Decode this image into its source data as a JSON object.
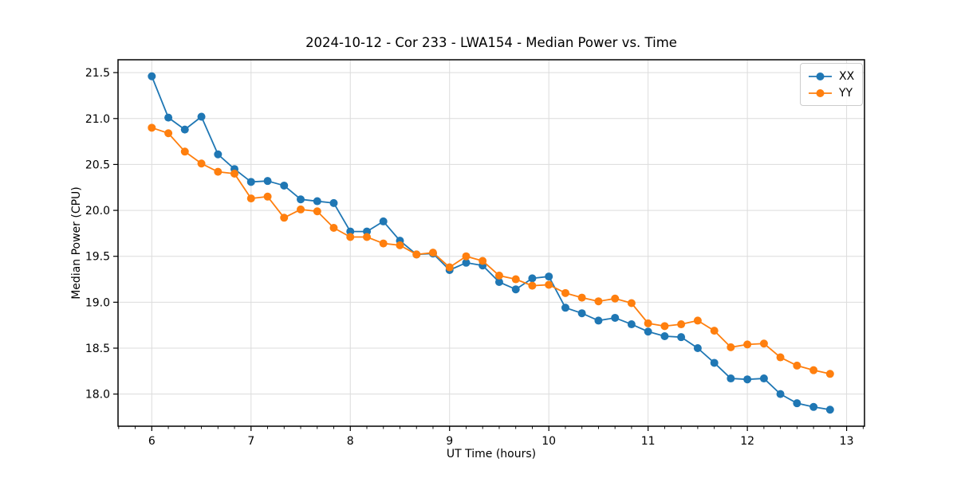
{
  "chart_data": {
    "type": "line",
    "title": "2024-10-12 - Cor 233 - LWA154 - Median Power vs. Time",
    "xlabel": "UT Time (hours)",
    "ylabel": "Median Power (CPU)",
    "xlim": [
      5.66,
      13.18
    ],
    "ylim": [
      17.65,
      21.64
    ],
    "xticks": [
      6,
      7,
      8,
      9,
      10,
      11,
      12,
      13
    ],
    "xtick_labels": [
      "6",
      "7",
      "8",
      "9",
      "10",
      "11",
      "12",
      "13"
    ],
    "yticks": [
      18.0,
      18.5,
      19.0,
      19.5,
      20.0,
      20.5,
      21.0,
      21.5
    ],
    "ytick_labels": [
      "18.0",
      "18.5",
      "19.0",
      "19.5",
      "20.0",
      "20.5",
      "21.0",
      "21.5"
    ],
    "grid": true,
    "grid_color": "#dcdcdc",
    "spine_color": "#000000",
    "background": "#ffffff",
    "minor_tick_step_x": 0.166667,
    "marker": "circle",
    "marker_size": 5,
    "line_width": 1.8,
    "legend_position": "upper right",
    "x": [
      6.0,
      6.167,
      6.333,
      6.5,
      6.667,
      6.833,
      7.0,
      7.167,
      7.333,
      7.5,
      7.667,
      7.833,
      8.0,
      8.167,
      8.333,
      8.5,
      8.667,
      8.833,
      9.0,
      9.167,
      9.333,
      9.5,
      9.667,
      9.833,
      10.0,
      10.167,
      10.333,
      10.5,
      10.667,
      10.833,
      11.0,
      11.167,
      11.333,
      11.5,
      11.667,
      11.833,
      12.0,
      12.167,
      12.333,
      12.5,
      12.667,
      12.833
    ],
    "series": [
      {
        "name": "XX",
        "color": "#1f77b4",
        "values": [
          21.46,
          21.01,
          20.88,
          21.02,
          20.61,
          20.45,
          20.31,
          20.32,
          20.27,
          20.12,
          20.1,
          20.08,
          19.77,
          19.77,
          19.88,
          19.67,
          19.52,
          19.53,
          19.35,
          19.43,
          19.4,
          19.22,
          19.14,
          19.26,
          19.28,
          18.94,
          18.88,
          18.8,
          18.83,
          18.76,
          18.68,
          18.63,
          18.62,
          18.5,
          18.34,
          18.17,
          18.16,
          18.17,
          18.0,
          17.9,
          17.86,
          17.83
        ]
      },
      {
        "name": "YY",
        "color": "#ff7f0e",
        "values": [
          20.9,
          20.84,
          20.64,
          20.51,
          20.42,
          20.4,
          20.13,
          20.15,
          19.92,
          20.01,
          19.99,
          19.81,
          19.71,
          19.71,
          19.64,
          19.62,
          19.52,
          19.54,
          19.38,
          19.5,
          19.45,
          19.29,
          19.25,
          19.18,
          19.19,
          19.1,
          19.05,
          19.01,
          19.04,
          18.99,
          18.77,
          18.74,
          18.76,
          18.8,
          18.69,
          18.51,
          18.54,
          18.55,
          18.4,
          18.31,
          18.26,
          18.22
        ]
      }
    ]
  }
}
